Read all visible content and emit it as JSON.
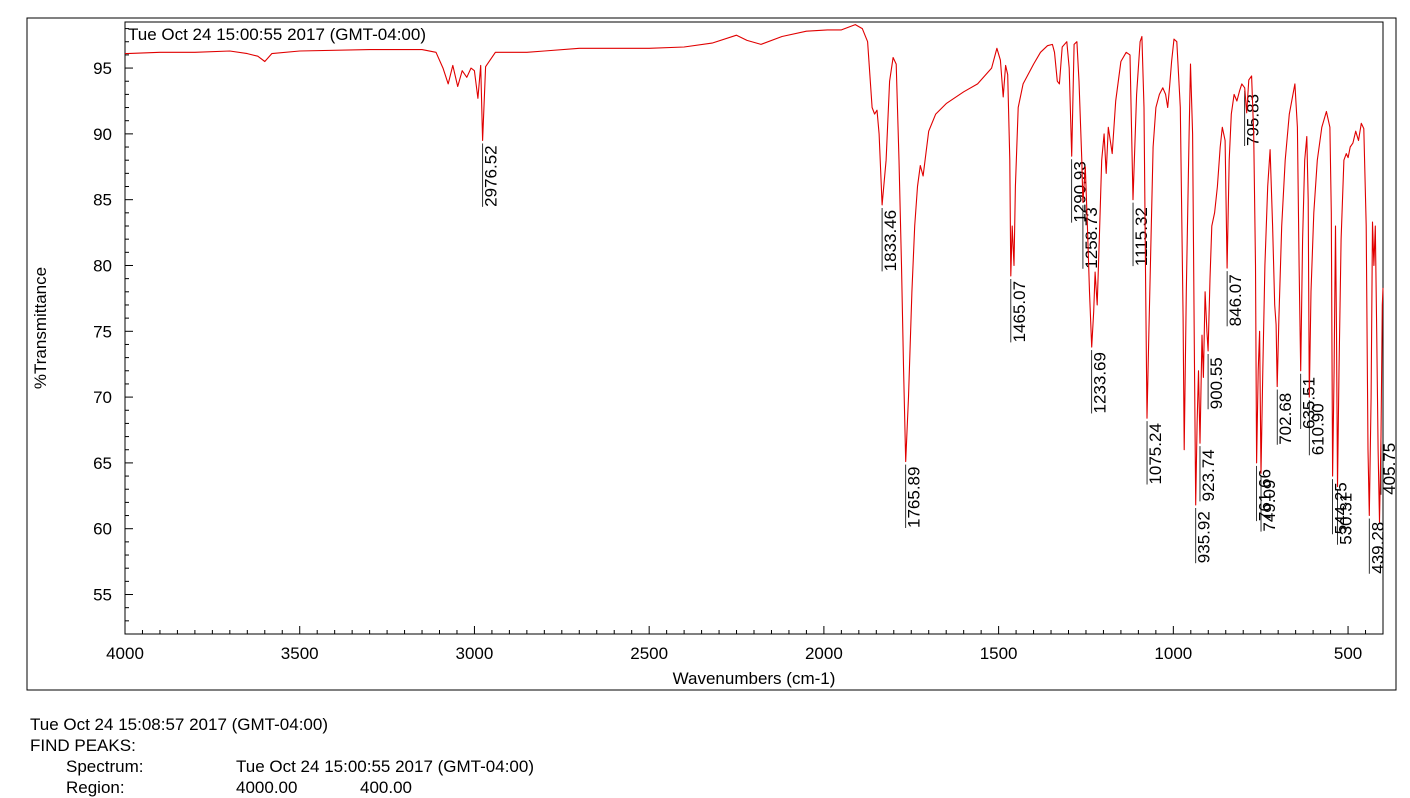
{
  "chart_data": {
    "type": "line",
    "title": "Tue Oct 24 15:00:55 2017 (GMT-04:00)",
    "xlabel": "Wavenumbers (cm-1)",
    "ylabel": "%Transmittance",
    "xlim": [
      4000,
      400
    ],
    "ylim": [
      52,
      98.5
    ],
    "x_reversed": true,
    "grid": false,
    "xticks": [
      4000,
      3500,
      3000,
      2500,
      2000,
      1500,
      1000,
      500
    ],
    "yticks": [
      55,
      60,
      65,
      70,
      75,
      80,
      85,
      90,
      95
    ],
    "line_color": "#e00000",
    "series": [
      {
        "points": [
          [
            4000,
            96.1
          ],
          [
            3900,
            96.2
          ],
          [
            3800,
            96.2
          ],
          [
            3700,
            96.3
          ],
          [
            3650,
            96.1
          ],
          [
            3620,
            95.9
          ],
          [
            3600,
            95.5
          ],
          [
            3580,
            96.1
          ],
          [
            3500,
            96.3
          ],
          [
            3300,
            96.4
          ],
          [
            3150,
            96.4
          ],
          [
            3110,
            96.2
          ],
          [
            3090,
            95.0
          ],
          [
            3075,
            93.8
          ],
          [
            3062,
            95.2
          ],
          [
            3048,
            93.6
          ],
          [
            3035,
            94.8
          ],
          [
            3022,
            94.3
          ],
          [
            3010,
            95.0
          ],
          [
            3000,
            94.8
          ],
          [
            2990,
            92.7
          ],
          [
            2982,
            95.2
          ],
          [
            2976.52,
            89.5
          ],
          [
            2968,
            95.1
          ],
          [
            2940,
            96.2
          ],
          [
            2850,
            96.2
          ],
          [
            2800,
            96.3
          ],
          [
            2700,
            96.5
          ],
          [
            2500,
            96.5
          ],
          [
            2400,
            96.6
          ],
          [
            2320,
            96.9
          ],
          [
            2250,
            97.5
          ],
          [
            2220,
            97.1
          ],
          [
            2180,
            96.8
          ],
          [
            2120,
            97.4
          ],
          [
            2050,
            97.8
          ],
          [
            1990,
            97.9
          ],
          [
            1950,
            97.9
          ],
          [
            1910,
            98.3
          ],
          [
            1890,
            98.0
          ],
          [
            1875,
            97.0
          ],
          [
            1862,
            92.0
          ],
          [
            1855,
            91.5
          ],
          [
            1848,
            91.8
          ],
          [
            1842,
            90.0
          ],
          [
            1833.46,
            84.6
          ],
          [
            1822,
            88.0
          ],
          [
            1812,
            94.0
          ],
          [
            1802,
            95.8
          ],
          [
            1793,
            95.3
          ],
          [
            1785,
            88.0
          ],
          [
            1778,
            80.0
          ],
          [
            1772,
            72.0
          ],
          [
            1765.89,
            65.1
          ],
          [
            1758,
            70.0
          ],
          [
            1748,
            78.0
          ],
          [
            1740,
            83.0
          ],
          [
            1732,
            86.0
          ],
          [
            1724,
            87.6
          ],
          [
            1716,
            86.8
          ],
          [
            1708,
            88.5
          ],
          [
            1700,
            90.2
          ],
          [
            1680,
            91.5
          ],
          [
            1650,
            92.3
          ],
          [
            1600,
            93.2
          ],
          [
            1560,
            93.8
          ],
          [
            1520,
            95.0
          ],
          [
            1505,
            96.5
          ],
          [
            1495,
            95.6
          ],
          [
            1487,
            92.8
          ],
          [
            1480,
            95.2
          ],
          [
            1474,
            94.5
          ],
          [
            1468,
            88.0
          ],
          [
            1465.07,
            79.2
          ],
          [
            1461,
            83.0
          ],
          [
            1456,
            80.0
          ],
          [
            1452,
            86.0
          ],
          [
            1444,
            92.0
          ],
          [
            1430,
            93.8
          ],
          [
            1400,
            95.3
          ],
          [
            1380,
            96.2
          ],
          [
            1360,
            96.7
          ],
          [
            1346,
            96.8
          ],
          [
            1340,
            96.2
          ],
          [
            1332,
            94.0
          ],
          [
            1326,
            93.8
          ],
          [
            1318,
            96.6
          ],
          [
            1305,
            97.0
          ],
          [
            1298,
            95.0
          ],
          [
            1290.93,
            88.3
          ],
          [
            1284,
            96.8
          ],
          [
            1276,
            97.0
          ],
          [
            1270,
            94.0
          ],
          [
            1262,
            88.0
          ],
          [
            1258.73,
            84.8
          ],
          [
            1252,
            87.5
          ],
          [
            1246,
            83.0
          ],
          [
            1240,
            78.0
          ],
          [
            1233.69,
            73.8
          ],
          [
            1228,
            76.5
          ],
          [
            1224,
            79.5
          ],
          [
            1218,
            77.0
          ],
          [
            1212,
            82.0
          ],
          [
            1205,
            88.0
          ],
          [
            1198,
            90.0
          ],
          [
            1192,
            87.0
          ],
          [
            1186,
            90.5
          ],
          [
            1175,
            88.5
          ],
          [
            1165,
            92.5
          ],
          [
            1150,
            95.5
          ],
          [
            1135,
            96.2
          ],
          [
            1124,
            96.0
          ],
          [
            1115.32,
            85.0
          ],
          [
            1105,
            93.0
          ],
          [
            1095,
            97.0
          ],
          [
            1090,
            97.4
          ],
          [
            1084,
            92.0
          ],
          [
            1079,
            78.0
          ],
          [
            1075.24,
            68.4
          ],
          [
            1070,
            75.0
          ],
          [
            1064,
            82.0
          ],
          [
            1058,
            89.0
          ],
          [
            1050,
            92.0
          ],
          [
            1040,
            93.0
          ],
          [
            1030,
            93.5
          ],
          [
            1022,
            93.0
          ],
          [
            1016,
            92.0
          ],
          [
            1011,
            93.5
          ],
          [
            1005,
            95.5
          ],
          [
            998,
            97.2
          ],
          [
            990,
            97.0
          ],
          [
            980,
            92.0
          ],
          [
            972,
            76.0
          ],
          [
            969,
            66.0
          ],
          [
            963,
            78.0
          ],
          [
            955,
            90.0
          ],
          [
            951,
            95.3
          ],
          [
            945,
            90.0
          ],
          [
            940,
            74.0
          ],
          [
            935.92,
            61.8
          ],
          [
            932,
            68.0
          ],
          [
            928,
            72.0
          ],
          [
            923.74,
            66.5
          ],
          [
            918,
            74.7
          ],
          [
            914,
            71.5
          ],
          [
            909,
            78.0
          ],
          [
            904,
            75.0
          ],
          [
            900.55,
            73.5
          ],
          [
            895,
            79.0
          ],
          [
            890,
            83.0
          ],
          [
            882,
            84.0
          ],
          [
            874,
            86.0
          ],
          [
            866,
            89.0
          ],
          [
            860,
            90.5
          ],
          [
            852,
            89.5
          ],
          [
            846.07,
            79.8
          ],
          [
            840,
            88.0
          ],
          [
            834,
            91.5
          ],
          [
            826,
            93.0
          ],
          [
            818,
            92.5
          ],
          [
            810,
            93.3
          ],
          [
            804,
            93.8
          ],
          [
            795.83,
            93.5
          ],
          [
            790,
            91.6
          ],
          [
            784,
            94.1
          ],
          [
            776,
            94.4
          ],
          [
            770,
            90.0
          ],
          [
            765,
            80.0
          ],
          [
            761.66,
            65.0
          ],
          [
            757,
            72.0
          ],
          [
            753,
            75.0
          ],
          [
            749.09,
            64.2
          ],
          [
            744,
            72.0
          ],
          [
            738,
            80.0
          ],
          [
            730,
            86.0
          ],
          [
            723,
            88.8
          ],
          [
            716,
            83.0
          ],
          [
            710,
            77.0
          ],
          [
            706,
            75.5
          ],
          [
            702.68,
            70.8
          ],
          [
            698,
            76.0
          ],
          [
            690,
            83.0
          ],
          [
            680,
            88.0
          ],
          [
            668,
            91.5
          ],
          [
            652,
            93.8
          ],
          [
            645,
            90.5
          ],
          [
            640,
            80.0
          ],
          [
            635.51,
            72.0
          ],
          [
            630,
            82.0
          ],
          [
            624,
            88.0
          ],
          [
            618,
            89.8
          ],
          [
            614,
            85.0
          ],
          [
            610.9,
            70.0
          ],
          [
            606,
            78.0
          ],
          [
            598,
            84.0
          ],
          [
            588,
            88.0
          ],
          [
            575,
            90.5
          ],
          [
            562,
            91.7
          ],
          [
            552,
            90.5
          ],
          [
            548,
            84.0
          ],
          [
            544.25,
            64.0
          ],
          [
            540,
            72.0
          ],
          [
            536,
            83.0
          ],
          [
            533,
            75.0
          ],
          [
            530.31,
            63.2
          ],
          [
            526,
            72.0
          ],
          [
            520,
            82.0
          ],
          [
            512,
            88.0
          ],
          [
            505,
            88.5
          ],
          [
            500,
            88.2
          ],
          [
            494,
            89.0
          ],
          [
            486,
            89.3
          ],
          [
            478,
            90.2
          ],
          [
            470,
            89.5
          ],
          [
            462,
            90.8
          ],
          [
            455,
            90.4
          ],
          [
            448,
            83.0
          ],
          [
            443,
            66.0
          ],
          [
            439.28,
            61.0
          ],
          [
            434,
            70.0
          ],
          [
            430,
            83.3
          ],
          [
            426,
            80.0
          ],
          [
            422,
            83.0
          ],
          [
            418,
            75.0
          ],
          [
            414,
            66.0
          ],
          [
            410,
            60.5
          ],
          [
            405.75,
            67.0
          ],
          [
            402,
            77.0
          ],
          [
            400,
            78.3
          ]
        ]
      }
    ],
    "peak_labels": [
      {
        "x": 2976.52,
        "text": "2976.52"
      },
      {
        "x": 1833.46,
        "text": "1833.46"
      },
      {
        "x": 1765.89,
        "text": "1765.89"
      },
      {
        "x": 1465.07,
        "text": "1465.07"
      },
      {
        "x": 1290.93,
        "text": "1290.93"
      },
      {
        "x": 1258.73,
        "text": "1258.73"
      },
      {
        "x": 1233.69,
        "text": "1233.69"
      },
      {
        "x": 1115.32,
        "text": "1115.32"
      },
      {
        "x": 1075.24,
        "text": "1075.24"
      },
      {
        "x": 935.92,
        "text": "935.92"
      },
      {
        "x": 923.74,
        "text": "923.74"
      },
      {
        "x": 900.55,
        "text": "900.55"
      },
      {
        "x": 846.07,
        "text": "846.07"
      },
      {
        "x": 795.83,
        "text": "795.83"
      },
      {
        "x": 761.66,
        "text": "761.66"
      },
      {
        "x": 749.09,
        "text": "749.09"
      },
      {
        "x": 702.68,
        "text": "702.68"
      },
      {
        "x": 635.51,
        "text": "635.51"
      },
      {
        "x": 610.9,
        "text": "610.90"
      },
      {
        "x": 544.25,
        "text": "544.25"
      },
      {
        "x": 530.31,
        "text": "530.31"
      },
      {
        "x": 439.28,
        "text": "439.28"
      },
      {
        "x": 405.75,
        "text": "405.75"
      }
    ]
  },
  "footer": {
    "timestamp": "Tue Oct 24 15:08:57 2017 (GMT-04:00)",
    "heading": "FIND PEAKS:",
    "spectrum_label": "Spectrum:",
    "spectrum_value": "Tue Oct 24 15:00:55 2017 (GMT-04:00)",
    "region_label": "Region:",
    "region_start": "4000.00",
    "region_end": "400.00"
  }
}
